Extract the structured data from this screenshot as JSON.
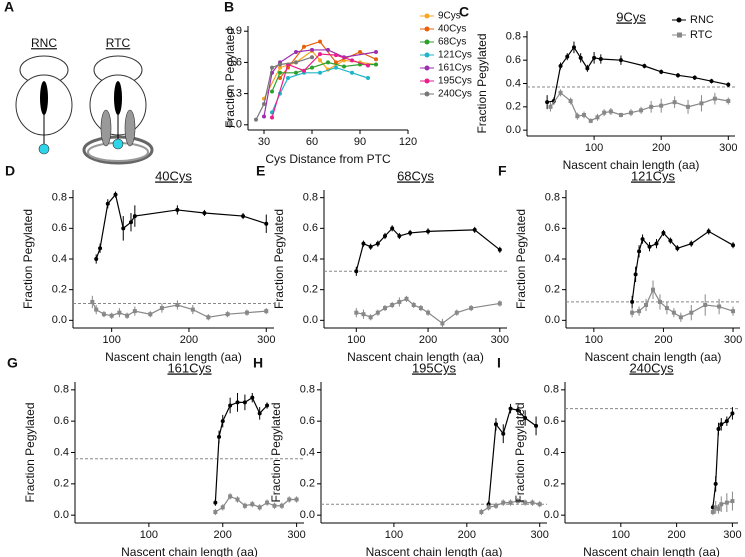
{
  "diagram": {
    "panel": "A",
    "labels": [
      "RNC",
      "RTC"
    ]
  },
  "chart_data": [
    {
      "type": "line",
      "panel": "B",
      "xlabel": "Cys Distance from PTC",
      "ylabel": "Fraction Pegylated",
      "xlim": [
        20,
        120
      ],
      "ylim": [
        -0.05,
        0.95
      ],
      "xticks": [
        30,
        60,
        90,
        120
      ],
      "yticks": [
        {
          "value": 0,
          "label": "0.0"
        },
        0.3,
        0.6,
        0.9
      ],
      "series": [
        {
          "name": "9Cys",
          "color": "#f5a623",
          "x": [
            30,
            40,
            50,
            60,
            65,
            70,
            80,
            90,
            100
          ],
          "values": [
            0.25,
            0.55,
            0.6,
            0.71,
            0.62,
            0.53,
            0.62,
            0.6,
            0.58
          ]
        },
        {
          "name": "40Cys",
          "color": "#e8600a",
          "x": [
            40,
            45,
            55,
            65,
            75,
            90,
            100
          ],
          "values": [
            0.45,
            0.55,
            0.75,
            0.8,
            0.6,
            0.7,
            0.63
          ]
        },
        {
          "name": "68Cys",
          "color": "#2ca02c",
          "x": [
            35,
            40,
            50,
            60,
            70,
            80,
            90,
            100
          ],
          "values": [
            0.32,
            0.5,
            0.5,
            0.55,
            0.6,
            0.56,
            0.58,
            0.58
          ]
        },
        {
          "name": "121Cys",
          "color": "#1fb5c9",
          "x": [
            35,
            40,
            45,
            55,
            65,
            75,
            85,
            95
          ],
          "values": [
            0.12,
            0.3,
            0.45,
            0.5,
            0.5,
            0.55,
            0.5,
            0.45
          ]
        },
        {
          "name": "161Cys",
          "color": "#9b2fae",
          "x": [
            30,
            35,
            40,
            50,
            60,
            70,
            80,
            100
          ],
          "values": [
            0.08,
            0.5,
            0.6,
            0.7,
            0.72,
            0.72,
            0.65,
            0.7
          ]
        },
        {
          "name": "195Cys",
          "color": "#e91e8c",
          "x": [
            35,
            45,
            55,
            65,
            75,
            85,
            95
          ],
          "values": [
            0.07,
            0.58,
            0.52,
            0.68,
            0.67,
            0.62,
            0.57
          ]
        },
        {
          "name": "240Cys",
          "color": "#777777",
          "x": [
            25,
            30,
            35,
            40,
            50,
            60
          ],
          "values": [
            0.05,
            0.2,
            0.55,
            0.58,
            0.6,
            0.65
          ]
        }
      ]
    },
    {
      "type": "line",
      "panel": "C",
      "title": "9Cys",
      "xlabel": "Nascent chain length (aa)",
      "ylabel": "Fraction Pegylated",
      "xlim": [
        0,
        310
      ],
      "ylim": [
        -0.05,
        0.85
      ],
      "xticks": [
        100,
        200,
        300
      ],
      "yticks": [
        {
          "value": 0,
          "label": "0.0"
        },
        0.2,
        0.4,
        0.6,
        0.8
      ],
      "reference_line": 0.37,
      "series": [
        {
          "name": "RNC",
          "color": "#000000",
          "x": [
            30,
            40,
            50,
            60,
            70,
            80,
            90,
            100,
            110,
            140,
            175,
            200,
            225,
            250,
            275,
            300
          ],
          "values": [
            0.24,
            0.25,
            0.55,
            0.63,
            0.71,
            0.62,
            0.53,
            0.62,
            0.61,
            0.6,
            0.55,
            0.5,
            0.47,
            0.45,
            0.42,
            0.39
          ],
          "errors": [
            0.06,
            0.03,
            0.03,
            0.03,
            0.05,
            0.04,
            0.03,
            0.05,
            0.04,
            0.04,
            0.02,
            0.02,
            0.02,
            0.02,
            0.02,
            0.02
          ]
        },
        {
          "name": "RTC",
          "color": "#888888",
          "x": [
            35,
            50,
            65,
            75,
            85,
            95,
            105,
            115,
            125,
            140,
            155,
            170,
            185,
            200,
            220,
            240,
            260,
            280,
            300
          ],
          "values": [
            0.2,
            0.32,
            0.25,
            0.12,
            0.13,
            0.08,
            0.11,
            0.15,
            0.16,
            0.13,
            0.15,
            0.17,
            0.2,
            0.21,
            0.24,
            0.2,
            0.23,
            0.27,
            0.25
          ],
          "errors": [
            0.04,
            0.03,
            0.03,
            0.03,
            0.03,
            0.02,
            0.03,
            0.03,
            0.03,
            0.02,
            0.03,
            0.03,
            0.05,
            0.06,
            0.05,
            0.06,
            0.07,
            0.05,
            0.03
          ]
        }
      ]
    },
    {
      "type": "line",
      "panel": "D",
      "title": "40Cys",
      "xlabel": "Nascent chain length (aa)",
      "ylabel": "Fraction Pegylated",
      "xlim": [
        50,
        310
      ],
      "ylim": [
        -0.05,
        0.85
      ],
      "xticks": [
        100,
        200,
        300
      ],
      "yticks": [
        {
          "value": 0,
          "label": "0.0"
        },
        0.2,
        0.4,
        0.6,
        0.8
      ],
      "reference_line": 0.11,
      "series": [
        {
          "color": "#000000",
          "x": [
            80,
            85,
            95,
            105,
            115,
            125,
            130,
            185,
            220,
            270,
            300
          ],
          "values": [
            0.4,
            0.47,
            0.76,
            0.82,
            0.6,
            0.64,
            0.68,
            0.72,
            0.7,
            0.68,
            0.63
          ],
          "errors": [
            0.03,
            0.03,
            0.03,
            0.02,
            0.08,
            0.06,
            0.07,
            0.03,
            0.02,
            0.02,
            0.06
          ]
        },
        {
          "color": "#888888",
          "x": [
            75,
            80,
            90,
            100,
            110,
            120,
            130,
            150,
            165,
            185,
            205,
            225,
            250,
            275,
            300
          ],
          "values": [
            0.12,
            0.07,
            0.04,
            0.03,
            0.05,
            0.03,
            0.06,
            0.04,
            0.08,
            0.1,
            0.07,
            0.02,
            0.04,
            0.05,
            0.06
          ],
          "errors": [
            0.04,
            0.03,
            0.02,
            0.02,
            0.03,
            0.02,
            0.03,
            0.02,
            0.03,
            0.03,
            0.03,
            0.02,
            0.02,
            0.02,
            0.02
          ]
        }
      ]
    },
    {
      "type": "line",
      "panel": "E",
      "title": "68Cys",
      "xlabel": "Nascent chain length (aa)",
      "ylabel": "Fraction Pegylated",
      "xlim": [
        55,
        310
      ],
      "ylim": [
        -0.05,
        0.85
      ],
      "xticks": [
        100,
        200,
        300
      ],
      "yticks": [
        {
          "value": 0,
          "label": "0.0"
        },
        0.2,
        0.4,
        0.6,
        0.8
      ],
      "reference_line": 0.32,
      "series": [
        {
          "color": "#000000",
          "x": [
            100,
            110,
            120,
            130,
            140,
            150,
            160,
            175,
            200,
            265,
            300
          ],
          "values": [
            0.32,
            0.5,
            0.48,
            0.5,
            0.55,
            0.6,
            0.55,
            0.57,
            0.58,
            0.59,
            0.46
          ],
          "errors": [
            0.03,
            0.02,
            0.02,
            0.02,
            0.02,
            0.02,
            0.02,
            0.02,
            0.02,
            0.02,
            0.02
          ]
        },
        {
          "color": "#888888",
          "x": [
            100,
            110,
            120,
            130,
            140,
            150,
            160,
            170,
            180,
            190,
            200,
            220,
            240,
            260,
            300
          ],
          "values": [
            0.05,
            0.04,
            0.02,
            0.05,
            0.08,
            0.1,
            0.12,
            0.14,
            0.1,
            0.08,
            0.05,
            -0.02,
            0.05,
            0.08,
            0.11
          ],
          "errors": [
            0.03,
            0.03,
            0.02,
            0.02,
            0.02,
            0.02,
            0.03,
            0.02,
            0.02,
            0.02,
            0.02,
            0.03,
            0.02,
            0.02,
            0.02
          ]
        }
      ]
    },
    {
      "type": "line",
      "panel": "F",
      "title": "121Cys",
      "xlabel": "Nascent chain length (aa)",
      "ylabel": "Fraction Pegylated",
      "xlim": [
        60,
        310
      ],
      "ylim": [
        -0.05,
        0.85
      ],
      "xticks": [
        100,
        200,
        300
      ],
      "yticks": [
        {
          "value": 0,
          "label": "0.0"
        },
        0.2,
        0.4,
        0.6,
        0.8
      ],
      "reference_line": 0.12,
      "series": [
        {
          "color": "#000000",
          "x": [
            155,
            160,
            165,
            170,
            180,
            190,
            200,
            210,
            220,
            240,
            265,
            300
          ],
          "values": [
            0.12,
            0.3,
            0.45,
            0.53,
            0.48,
            0.5,
            0.57,
            0.52,
            0.47,
            0.5,
            0.58,
            0.49
          ],
          "errors": [
            0.04,
            0.05,
            0.04,
            0.03,
            0.03,
            0.03,
            0.02,
            0.02,
            0.02,
            0.02,
            0.02,
            0.02
          ]
        },
        {
          "color": "#888888",
          "x": [
            155,
            165,
            175,
            185,
            195,
            205,
            215,
            225,
            240,
            260,
            280,
            300
          ],
          "values": [
            0.05,
            0.06,
            0.1,
            0.2,
            0.12,
            0.08,
            0.05,
            0.02,
            0.05,
            0.1,
            0.09,
            0.06
          ],
          "errors": [
            0.03,
            0.03,
            0.04,
            0.06,
            0.05,
            0.04,
            0.03,
            0.03,
            0.05,
            0.07,
            0.05,
            0.03
          ]
        }
      ]
    },
    {
      "type": "line",
      "panel": "G",
      "title": "161Cys",
      "xlabel": "Nascent chain length (aa)",
      "ylabel": "Fraction Pegylated",
      "xlim": [
        0,
        310
      ],
      "ylim": [
        -0.05,
        0.85
      ],
      "xticks": [
        100,
        200,
        300
      ],
      "yticks": [
        {
          "value": 0,
          "label": "0.0"
        },
        0.2,
        0.4,
        0.6,
        0.8
      ],
      "reference_line": 0.36,
      "series": [
        {
          "color": "#000000",
          "x": [
            190,
            195,
            200,
            210,
            220,
            230,
            240,
            250,
            260
          ],
          "values": [
            0.08,
            0.5,
            0.6,
            0.7,
            0.72,
            0.72,
            0.75,
            0.65,
            0.7
          ],
          "errors": [
            0.02,
            0.04,
            0.04,
            0.05,
            0.06,
            0.05,
            0.03,
            0.04,
            0.02
          ]
        },
        {
          "color": "#888888",
          "x": [
            190,
            200,
            210,
            220,
            230,
            240,
            250,
            260,
            270,
            280,
            290,
            300
          ],
          "values": [
            0.02,
            0.05,
            0.12,
            0.1,
            0.06,
            0.07,
            0.05,
            0.08,
            0.06,
            0.06,
            0.1,
            0.1
          ],
          "errors": [
            0.02,
            0.02,
            0.02,
            0.02,
            0.02,
            0.02,
            0.02,
            0.02,
            0.02,
            0.02,
            0.02,
            0.02
          ]
        }
      ]
    },
    {
      "type": "line",
      "panel": "H",
      "title": "195Cys",
      "xlabel": "Nascent chain length (aa)",
      "ylabel": "Fraction Pegylated",
      "xlim": [
        0,
        310
      ],
      "ylim": [
        -0.05,
        0.85
      ],
      "xticks": [
        100,
        200,
        300
      ],
      "yticks": [
        {
          "value": 0,
          "label": "0.0"
        },
        0.2,
        0.4,
        0.6,
        0.8
      ],
      "reference_line": 0.07,
      "series": [
        {
          "color": "#000000",
          "x": [
            230,
            240,
            250,
            260,
            270,
            280,
            295
          ],
          "values": [
            0.07,
            0.58,
            0.52,
            0.68,
            0.67,
            0.62,
            0.57
          ],
          "errors": [
            0.02,
            0.04,
            0.06,
            0.03,
            0.03,
            0.05,
            0.06
          ]
        },
        {
          "color": "#888888",
          "x": [
            220,
            230,
            240,
            250,
            260,
            270,
            280,
            290,
            300
          ],
          "values": [
            0.02,
            0.05,
            0.06,
            0.08,
            0.08,
            0.09,
            0.08,
            0.08,
            0.07
          ],
          "errors": [
            0.02,
            0.02,
            0.02,
            0.02,
            0.02,
            0.02,
            0.02,
            0.02,
            0.02
          ]
        }
      ]
    },
    {
      "type": "line",
      "panel": "I",
      "title": "240Cys",
      "xlabel": "Nascent chain length (aa)",
      "ylabel": "Fraction Pegylated",
      "xlim": [
        0,
        310
      ],
      "ylim": [
        -0.05,
        0.85
      ],
      "xticks": [
        100,
        200,
        300
      ],
      "yticks": [
        {
          "value": 0,
          "label": "0.0"
        },
        0.2,
        0.4,
        0.6,
        0.8
      ],
      "reference_line": 0.68,
      "series": [
        {
          "color": "#000000",
          "x": [
            265,
            270,
            275,
            280,
            290,
            300
          ],
          "values": [
            0.05,
            0.2,
            0.55,
            0.58,
            0.6,
            0.65
          ],
          "errors": [
            0.02,
            0.05,
            0.04,
            0.04,
            0.03,
            0.04
          ]
        },
        {
          "color": "#888888",
          "x": [
            265,
            270,
            275,
            280,
            290,
            300
          ],
          "values": [
            0.02,
            0.05,
            0.04,
            0.07,
            0.08,
            0.09
          ],
          "errors": [
            0.02,
            0.04,
            0.03,
            0.05,
            0.06,
            0.06
          ]
        }
      ]
    }
  ]
}
